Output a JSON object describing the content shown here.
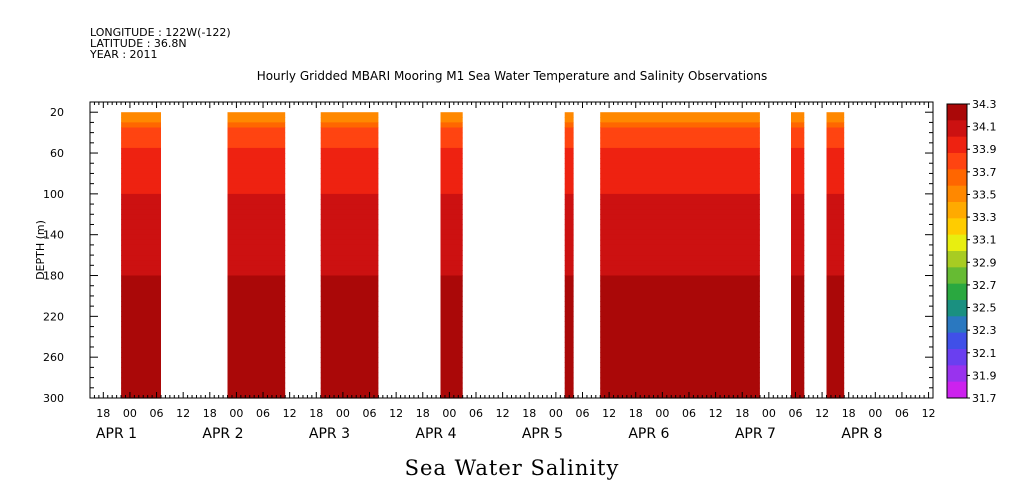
{
  "header": {
    "longitude": "LONGITUDE : 122W(-122)",
    "latitude": "LATITUDE : 36.8N",
    "year": "YEAR : 2011",
    "title": "Hourly Gridded MBARI Mooring M1 Sea Water Temperature and Salinity Observations"
  },
  "variable_title": "Sea Water Salinity",
  "chart_data": {
    "type": "heatmap",
    "title": "Hourly Gridded MBARI Mooring M1 Sea Water Temperature and Salinity Observations",
    "subtitle": "Sea Water Salinity",
    "xlabel": "",
    "ylabel": "DEPTH (m)",
    "y_reversed": true,
    "ylim": [
      300,
      10
    ],
    "y_ticks": [
      20,
      60,
      100,
      140,
      180,
      220,
      260,
      300
    ],
    "x_hour_range": [
      -9,
      103
    ],
    "x_hour_tick_labels": [
      {
        "h": -6,
        "label": "18"
      },
      {
        "h": 0,
        "label": "00"
      },
      {
        "h": 6,
        "label": "06"
      },
      {
        "h": 12,
        "label": "12"
      },
      {
        "h": 18,
        "label": "18"
      },
      {
        "h": 24,
        "label": "00"
      },
      {
        "h": 30,
        "label": "06"
      },
      {
        "h": 36,
        "label": "12"
      },
      {
        "h": 42,
        "label": "18"
      },
      {
        "h": 48,
        "label": "00"
      },
      {
        "h": 54,
        "label": "06"
      },
      {
        "h": 60,
        "label": "12"
      },
      {
        "h": 66,
        "label": "18"
      },
      {
        "h": 72,
        "label": "00"
      },
      {
        "h": 78,
        "label": "06"
      },
      {
        "h": 84,
        "label": "12"
      },
      {
        "h": 90,
        "label": "18"
      },
      {
        "h": 96,
        "label": "00"
      },
      {
        "h": 102,
        "label": "06"
      },
      {
        "h": 108,
        "label": "12"
      },
      {
        "h": 114,
        "label": "18"
      },
      {
        "h": 120,
        "label": "00"
      },
      {
        "h": 126,
        "label": "06"
      },
      {
        "h": 132,
        "label": "12"
      },
      {
        "h": 138,
        "label": "18"
      },
      {
        "h": 144,
        "label": "00"
      },
      {
        "h": 150,
        "label": "06"
      },
      {
        "h": 156,
        "label": "12"
      },
      {
        "h": 162,
        "label": "18"
      },
      {
        "h": 168,
        "label": "00"
      },
      {
        "h": 174,
        "label": "06"
      },
      {
        "h": 180,
        "label": "12"
      }
    ],
    "date_labels": [
      {
        "h": 0,
        "label": "APR  1"
      },
      {
        "h": 24,
        "label": "APR  2"
      },
      {
        "h": 48,
        "label": "APR  3"
      },
      {
        "h": 72,
        "label": "APR  4"
      },
      {
        "h": 96,
        "label": "APR  5"
      },
      {
        "h": 120,
        "label": "APR  6"
      },
      {
        "h": 144,
        "label": "APR  7"
      },
      {
        "h": 168,
        "label": "APR  8"
      }
    ],
    "data_segments": [
      {
        "start_h": -2,
        "end_h": 7
      },
      {
        "start_h": 22,
        "end_h": 35
      },
      {
        "start_h": 43,
        "end_h": 56
      },
      {
        "start_h": 70,
        "end_h": 75
      },
      {
        "start_h": 98,
        "end_h": 100
      },
      {
        "start_h": 106,
        "end_h": 142
      },
      {
        "start_h": 149,
        "end_h": 152
      },
      {
        "start_h": 157,
        "end_h": 161
      }
    ],
    "salinity_profile": [
      {
        "depth": 20,
        "salinity": 33.4
      },
      {
        "depth": 30,
        "salinity": 33.6
      },
      {
        "depth": 40,
        "salinity": 33.75
      },
      {
        "depth": 55,
        "salinity": 33.85
      },
      {
        "depth": 75,
        "salinity": 33.95
      },
      {
        "depth": 100,
        "salinity": 34.0
      },
      {
        "depth": 135,
        "salinity": 34.05
      },
      {
        "depth": 180,
        "salinity": 34.15
      },
      {
        "depth": 230,
        "salinity": 34.25
      },
      {
        "depth": 270,
        "salinity": 34.25
      },
      {
        "depth": 300,
        "salinity": 34.15
      }
    ],
    "colorbar": {
      "levels": [
        31.7,
        31.9,
        32.1,
        32.3,
        32.5,
        32.7,
        32.9,
        33.1,
        33.3,
        33.5,
        33.7,
        33.9,
        34.1,
        34.3
      ],
      "labels": [
        "34.3",
        "34.1",
        "33.9",
        "33.7",
        "33.5",
        "33.3",
        "33.1",
        "32.9",
        "32.7",
        "32.5",
        "32.3",
        "32.1",
        "31.9",
        "31.7"
      ],
      "colors": [
        "#cc22ee",
        "#9933ee",
        "#6a3ff0",
        "#4050e8",
        "#2a78c0",
        "#1a9080",
        "#2aa840",
        "#66bb33",
        "#a8cc22",
        "#e8ee10",
        "#ffcc00",
        "#ffaa00",
        "#ff8800",
        "#ff6600",
        "#ff4411",
        "#ee2211",
        "#cc1111",
        "#aa0808"
      ]
    }
  }
}
